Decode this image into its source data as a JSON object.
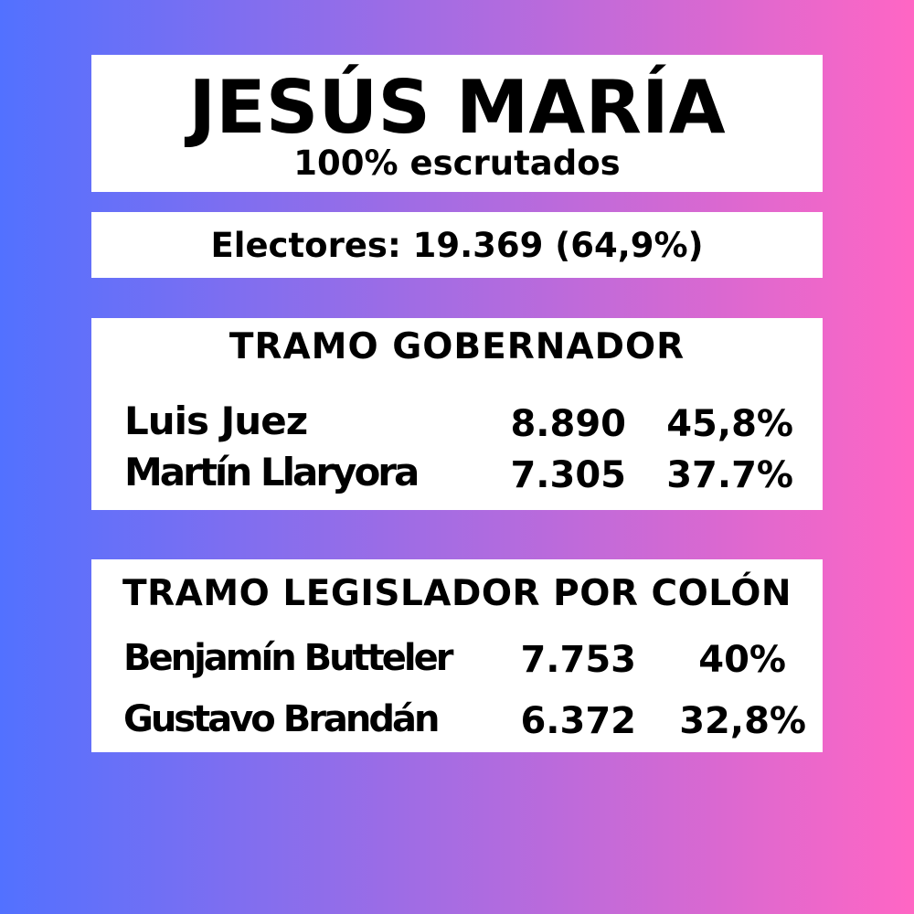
{
  "colors": {
    "gradient_left": "#5271ff",
    "gradient_right": "#ff66c4",
    "panel": "#ffffff",
    "text": "#000000"
  },
  "header": {
    "title": "JESÚS MARÍA",
    "subtitle": "100% escrutados"
  },
  "electores": "Electores: 19.369 (64,9%)",
  "gobernador": {
    "title": "TRAMO GOBERNADOR",
    "rows": [
      {
        "name": "Luis Juez",
        "votes": "8.890",
        "pct": "45,8%"
      },
      {
        "name": "Martín Llaryora",
        "votes": "7.305",
        "pct": "37.7%"
      }
    ]
  },
  "legislador": {
    "title": "TRAMO LEGISLADOR POR COLÓN",
    "rows": [
      {
        "name": "Benjamín Butteler",
        "votes": "7.753",
        "pct": "40%"
      },
      {
        "name": "Gustavo Brandán",
        "votes": "6.372",
        "pct": "32,8%"
      }
    ]
  }
}
